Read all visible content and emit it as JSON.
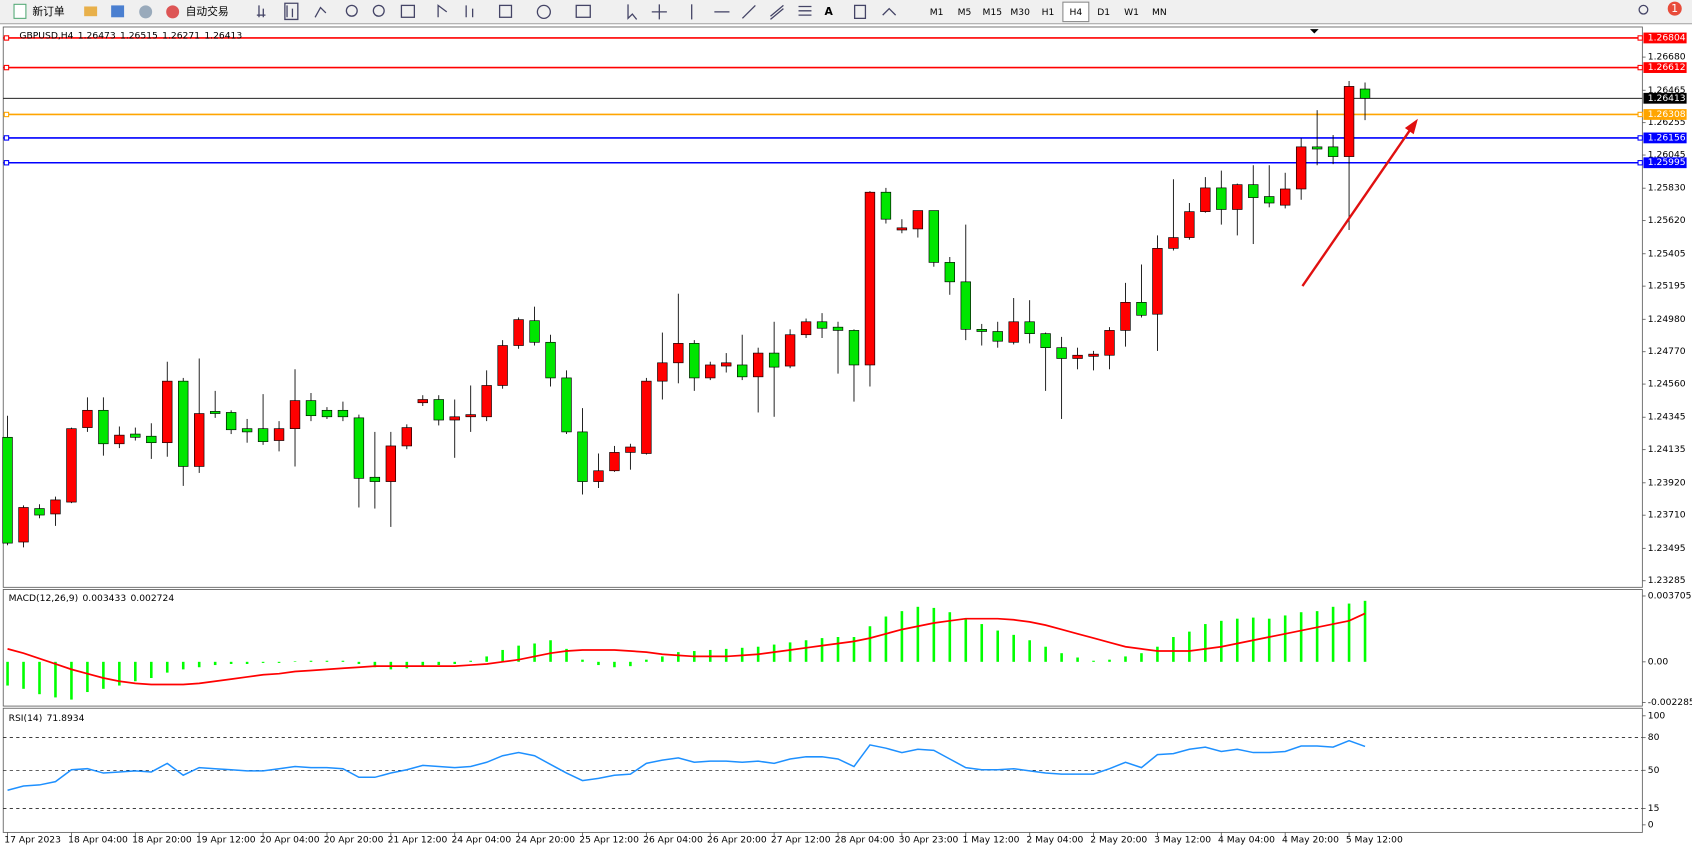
{
  "toolbar": {
    "buttons": [
      "新订单",
      "自动交易"
    ],
    "timeframes": [
      {
        "label": "M1"
      },
      {
        "label": "M5"
      },
      {
        "label": "M15"
      },
      {
        "label": "M30"
      },
      {
        "label": "H1"
      },
      {
        "label": "H4",
        "active": true
      },
      {
        "label": "D1"
      },
      {
        "label": "W1"
      },
      {
        "label": "MN"
      }
    ],
    "notifications": 1
  },
  "chart_data": [
    {
      "type": "candlestick",
      "title": "GBPUSD,H4",
      "categories": [
        "17 Apr 2023",
        null,
        null,
        null,
        "18 Apr 04:00",
        null,
        null,
        null,
        "18 Apr 20:00",
        null,
        null,
        null,
        "19 Apr 12:00",
        null,
        null,
        null,
        "20 Apr 04:00",
        null,
        null,
        null,
        "20 Apr 20:00",
        null,
        null,
        null,
        "21 Apr 12:00",
        null,
        null,
        null,
        "24 Apr 04:00",
        null,
        null,
        null,
        "24 Apr 20:00",
        null,
        null,
        null,
        "25 Apr 12:00",
        null,
        null,
        null,
        "26 Apr 04:00",
        null,
        null,
        null,
        "26 Apr 20:00",
        null,
        null,
        null,
        "27 Apr 12:00",
        null,
        null,
        null,
        "28 Apr 04:00",
        null,
        null,
        null,
        "30 Apr 23:00",
        null,
        null,
        null,
        "1 May 12:00",
        null,
        null,
        null,
        "2 May 04:00",
        null,
        null,
        null,
        "2 May 20:00",
        null,
        null,
        null,
        "3 May 12:00",
        null,
        null,
        null,
        "4 May 04:00",
        null,
        null,
        null,
        "4 May 20:00",
        null,
        null,
        null,
        "5 May 12:00",
        null
      ],
      "open": [
        1.24215,
        1.23536,
        1.23753,
        1.23718,
        1.23795,
        1.24278,
        1.2439,
        1.24173,
        1.24236,
        1.24222,
        1.2418,
        1.24579,
        1.24026,
        1.24383,
        1.24376,
        1.24271,
        1.24271,
        1.24194,
        1.24271,
        1.24453,
        1.2439,
        1.2439,
        1.24341,
        1.23956,
        1.23928,
        1.24159,
        1.24439,
        1.2446,
        1.24327,
        1.24348,
        1.24348,
        1.24551,
        1.2481,
        1.24971,
        1.24831,
        1.246,
        1.2425,
        1.23928,
        1.23998,
        1.24117,
        1.2411,
        1.24579,
        1.24698,
        1.24824,
        1.246,
        1.24677,
        1.24684,
        1.24607,
        1.24761,
        1.24677,
        1.2488,
        1.24964,
        1.24929,
        1.24908,
        1.24684,
        1.25804,
        1.25559,
        1.25566,
        1.25685,
        1.25349,
        1.25223,
        1.24915,
        1.24901,
        1.24831,
        1.24964,
        1.24887,
        1.24796,
        1.24726,
        1.2474,
        1.24747,
        1.24908,
        1.2509,
        1.25013,
        1.2544,
        1.2551,
        1.25678,
        1.25832,
        1.25692,
        1.25853,
        1.25776,
        1.2572,
        1.25825,
        1.26098,
        1.26098,
        1.26035,
        1.26473
      ],
      "high": [
        1.24355,
        1.23774,
        1.23781,
        1.2383,
        1.24278,
        1.24474,
        1.24474,
        1.24285,
        1.24278,
        1.24306,
        1.24705,
        1.246,
        1.24726,
        1.24516,
        1.2439,
        1.24334,
        1.24495,
        1.2432,
        1.24656,
        1.24502,
        1.24411,
        1.24446,
        1.24362,
        1.2425,
        1.2425,
        1.24299,
        1.24488,
        1.24488,
        1.2446,
        1.24551,
        1.24649,
        1.24845,
        1.24992,
        1.25062,
        1.2488,
        1.24649,
        1.24404,
        1.2411,
        1.24159,
        1.24173,
        1.246,
        1.24894,
        1.25146,
        1.24845,
        1.24705,
        1.24761,
        1.2488,
        1.24796,
        1.24964,
        1.24915,
        1.24985,
        1.2502,
        1.24964,
        1.24915,
        1.25811,
        1.25832,
        1.25629,
        1.25685,
        1.25685,
        1.25384,
        1.25594,
        1.2495,
        1.24964,
        1.25118,
        1.25104,
        1.24894,
        1.24866,
        1.24796,
        1.24775,
        1.24929,
        1.25216,
        1.25335,
        1.25524,
        1.25888,
        1.25734,
        1.25902,
        1.25944,
        1.2586,
        1.25979,
        1.25979,
        1.2593,
        1.26154,
        1.26336,
        1.26175,
        1.26525,
        1.26515
      ],
      "low": [
        1.23515,
        1.23501,
        1.2369,
        1.23641,
        1.23788,
        1.2425,
        1.24096,
        1.24145,
        1.24194,
        1.24075,
        1.24089,
        1.239,
        1.23984,
        1.24341,
        1.24236,
        1.2418,
        1.24166,
        1.24124,
        1.24026,
        1.2432,
        1.24334,
        1.2432,
        1.2376,
        1.23753,
        1.23634,
        1.24138,
        1.24418,
        1.24292,
        1.24082,
        1.2425,
        1.2432,
        1.2453,
        1.24789,
        1.2481,
        1.24544,
        1.24236,
        1.23844,
        1.23886,
        1.23991,
        1.24005,
        1.24103,
        1.2446,
        1.24565,
        1.24516,
        1.24586,
        1.24635,
        1.24586,
        1.24376,
        1.24348,
        1.24663,
        1.24859,
        1.24859,
        1.24628,
        1.24446,
        1.24544,
        1.25601,
        1.25538,
        1.2551,
        1.25321,
        1.25139,
        1.24845,
        1.2481,
        1.24796,
        1.24817,
        1.24824,
        1.24516,
        1.24334,
        1.24656,
        1.24649,
        1.24656,
        1.24803,
        1.24992,
        1.24775,
        1.25426,
        1.25496,
        1.25671,
        1.25594,
        1.25524,
        1.25468,
        1.25706,
        1.25699,
        1.25755,
        1.25979,
        1.25986,
        1.25559,
        1.26271
      ],
      "close": [
        1.23529,
        1.2376,
        1.23711,
        1.23809,
        1.24271,
        1.2439,
        1.24173,
        1.24229,
        1.24215,
        1.2418,
        1.24579,
        1.24026,
        1.24369,
        1.24369,
        1.24264,
        1.2425,
        1.24187,
        1.24271,
        1.24453,
        1.24355,
        1.24348,
        1.24348,
        1.23949,
        1.23928,
        1.24159,
        1.24278,
        1.2446,
        1.24327,
        1.24348,
        1.24362,
        1.24551,
        1.2481,
        1.24978,
        1.24831,
        1.246,
        1.2425,
        1.23928,
        1.23998,
        1.24117,
        1.24152,
        1.24579,
        1.24698,
        1.24824,
        1.246,
        1.24684,
        1.24698,
        1.24607,
        1.24761,
        1.2467,
        1.2488,
        1.24964,
        1.24922,
        1.24908,
        1.24684,
        1.25804,
        1.25629,
        1.25573,
        1.25685,
        1.25349,
        1.25223,
        1.24915,
        1.24901,
        1.24838,
        1.24964,
        1.24887,
        1.24796,
        1.24726,
        1.24747,
        1.24754,
        1.24908,
        1.2509,
        1.25006,
        1.2544,
        1.2551,
        1.25678,
        1.25832,
        1.25692,
        1.25853,
        1.25769,
        1.25734,
        1.25825,
        1.26098,
        1.26084,
        1.26035,
        1.2649,
        1.26413
      ],
      "up_color": "#ff0000",
      "down_color": "#00e600",
      "ylim": [
        1.2325,
        1.2685
      ],
      "yticks": [
        {
          "value": 1.2668,
          "label": "1.26680"
        },
        1.26465,
        1.26255,
        1.26045,
        {
          "value": 1.2583,
          "label": "1.25830"
        },
        {
          "value": 1.2562,
          "label": "1.25620"
        },
        1.25405,
        1.25195,
        {
          "value": 1.2498,
          "label": "1.24980"
        },
        {
          "value": 1.2477,
          "label": "1.24770"
        },
        {
          "value": 1.2456,
          "label": "1.24560"
        },
        1.24345,
        1.24135,
        {
          "value": 1.2392,
          "label": "1.23920"
        },
        {
          "value": 1.2371,
          "label": "1.23710"
        },
        1.23495,
        1.23285
      ],
      "hlines": [
        {
          "value": 1.26804,
          "color": "#ff0000"
        },
        {
          "value": 1.26612,
          "color": "#ff0000"
        },
        {
          "value": 1.26308,
          "color": "#ffa500"
        },
        {
          "value": 1.26156,
          "color": "#0000ff"
        },
        {
          "value": 1.25995,
          "color": "#0000ff"
        }
      ]
    },
    {
      "type": "combo",
      "title": "MACD(12,26,9)",
      "series": [
        {
          "type": "bar",
          "color": "#00ff00",
          "values": [
            -0.001335,
            -0.001518,
            -0.001821,
            -0.002003,
            -0.002125,
            -0.0017,
            -0.001518,
            -0.001335,
            -0.001093,
            -0.000911,
            -0.000607,
            -0.000425,
            -0.000304,
            -0.000182,
            -0.000121,
            -0.000121,
            -6.1e-05,
            -6.1e-05,
            3e-05,
            6.1e-05,
            6.1e-05,
            6.1e-05,
            -0.000121,
            -0.000304,
            -0.000425,
            -0.000364,
            -0.000243,
            -0.000182,
            -0.000121,
            6.1e-05,
            0.000304,
            0.000668,
            0.000911,
            0.001032,
            0.001214,
            0.000728,
            0.000121,
            -0.000182,
            -0.000304,
            -0.000243,
            0.000121,
            0.000304,
            0.000546,
            0.000607,
            0.000668,
            0.000728,
            0.000789,
            0.00085,
            0.000971,
            0.001093,
            0.001214,
            0.001335,
            0.001396,
            0.001396,
            0.002003,
            0.002549,
            0.002853,
            0.003096,
            0.003035,
            0.002792,
            0.002428,
            0.002125,
            0.00176,
            0.001518,
            0.001214,
            0.00085,
            0.000486,
            0.000243,
            6.1e-05,
            0.000121,
            0.000304,
            0.000486,
            0.00085,
            0.001396,
            0.0017,
            0.002125,
            0.002307,
            0.002428,
            0.002489,
            0.002428,
            0.00261,
            0.002792,
            0.002853,
            0.003096,
            0.003278,
            0.003433
          ]
        },
        {
          "type": "line",
          "color": "#ff0000",
          "values": [
            0.000728,
            0.000486,
            0.000182,
            -0.000121,
            -0.000425,
            -0.000668,
            -0.000911,
            -0.001093,
            -0.001214,
            -0.001275,
            -0.001275,
            -0.001275,
            -0.001214,
            -0.001093,
            -0.000971,
            -0.00085,
            -0.000728,
            -0.000668,
            -0.000546,
            -0.000486,
            -0.000425,
            -0.000364,
            -0.000304,
            -0.000243,
            -0.000243,
            -0.000243,
            -0.000243,
            -0.000243,
            -0.000243,
            -0.000182,
            -0.000121,
            0,
            0.000121,
            0.000304,
            0.000486,
            0.000607,
            0.000668,
            0.000668,
            0.000668,
            0.000607,
            0.000546,
            0.000425,
            0.000364,
            0.000304,
            0.000304,
            0.000304,
            0.000364,
            0.000425,
            0.000546,
            0.000668,
            0.000789,
            0.000911,
            0.001032,
            0.001153,
            0.001335,
            0.001578,
            0.001821,
            0.002003,
            0.002185,
            0.002307,
            0.002428,
            0.002428,
            0.002428,
            0.002367,
            0.002246,
            0.002064,
            0.001821,
            0.001578,
            0.001335,
            0.001093,
            0.00085,
            0.000728,
            0.000607,
            0.000607,
            0.000607,
            0.000728,
            0.00085,
            0.001032,
            0.001214,
            0.001396,
            0.001578,
            0.00176,
            0.001942,
            0.002125,
            0.002307,
            0.002724
          ]
        }
      ],
      "ylim": [
        -0.00243,
        0.00401
      ],
      "yticks": [
        0.003705,
        {
          "value": 0,
          "label": "0.00"
        },
        -0.002285
      ]
    },
    {
      "type": "line",
      "title": "RSI(14)",
      "color": "#1e90ff",
      "values": [
        31.7,
        35.6,
        36.6,
        39.6,
        50.5,
        51.5,
        47.5,
        48.5,
        49.5,
        48.5,
        56.4,
        45.5,
        52.5,
        51.5,
        50.5,
        49.5,
        49.5,
        51.5,
        53.5,
        52.5,
        52.5,
        51.5,
        43.6,
        43.6,
        47.5,
        50.5,
        54.5,
        53.5,
        52.5,
        53.5,
        57.4,
        63.4,
        66.3,
        63.4,
        55.4,
        47.5,
        40.6,
        42.6,
        45.5,
        46.5,
        56.4,
        59.4,
        61.4,
        57.4,
        58.4,
        58.4,
        57.4,
        58.4,
        56.4,
        60.4,
        62.4,
        62.4,
        60.4,
        53.5,
        73.3,
        70.3,
        66.3,
        69.3,
        68.3,
        60.4,
        52.5,
        50.5,
        50.5,
        51.5,
        49.5,
        47.5,
        46.5,
        46.5,
        46.5,
        51.5,
        57.4,
        52.5,
        64.4,
        65.3,
        69.3,
        71.3,
        67.3,
        69.3,
        66.3,
        66.3,
        67.3,
        72.3,
        72.3,
        71.3,
        77.2,
        71.8934
      ],
      "ylim": [
        0,
        100
      ],
      "yticks": [
        100,
        80,
        50,
        15,
        0
      ],
      "levels": [
        80,
        50,
        15
      ]
    }
  ]
}
